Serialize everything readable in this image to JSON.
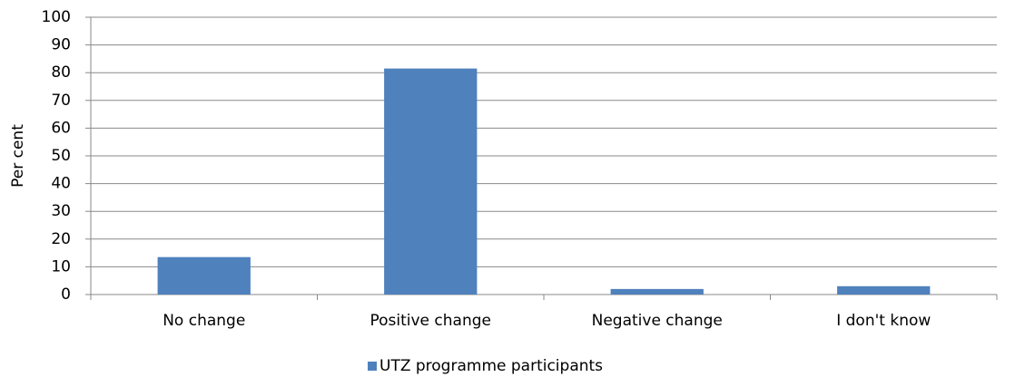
{
  "chart_data": {
    "type": "bar",
    "y_label": "Per cent",
    "categories": [
      "No change",
      "Positive change",
      "Negative change",
      "I don't know"
    ],
    "series": [
      {
        "name": "UTZ programme participants",
        "color": "#4f81bd",
        "values": [
          13.5,
          81.5,
          2,
          3
        ]
      }
    ],
    "ylim": [
      0,
      100
    ],
    "yticks": [
      0,
      10,
      20,
      30,
      40,
      50,
      60,
      70,
      80,
      90,
      100
    ],
    "grid": true,
    "legend": "bottom"
  }
}
